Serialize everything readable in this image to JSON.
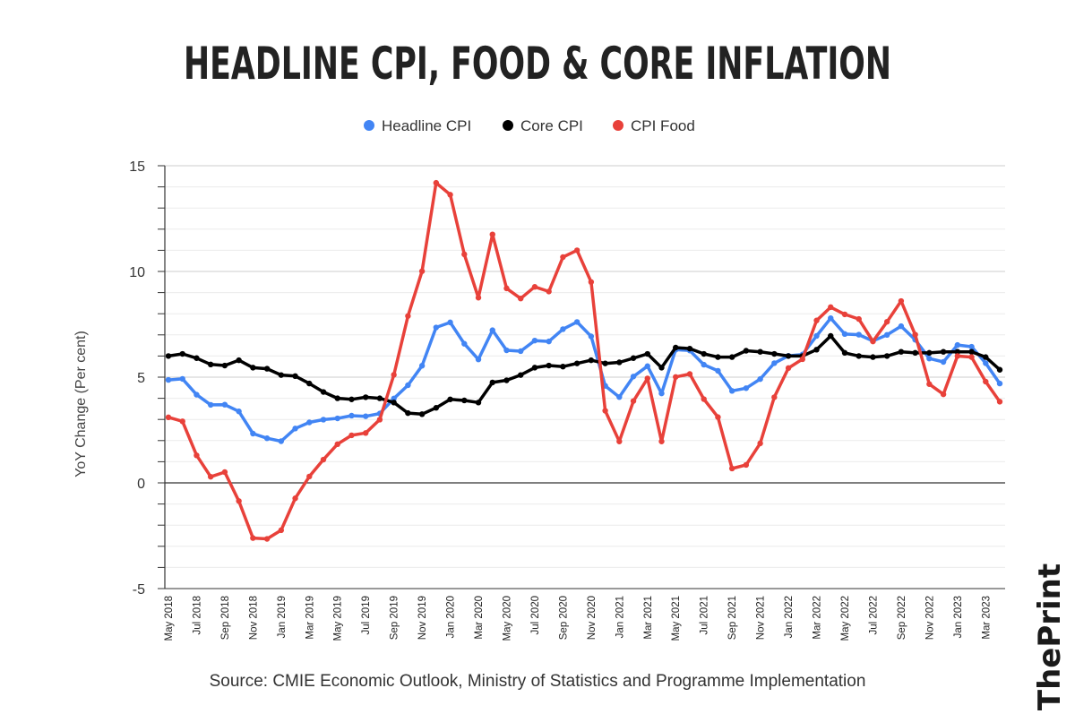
{
  "chart_data": {
    "type": "line",
    "title": "HEADLINE CPI, FOOD & CORE INFLATION",
    "ylabel": "YoY Change (Per cent)",
    "xlabel": "",
    "ylim": [
      -5,
      15
    ],
    "yticks": [
      -5,
      0,
      5,
      10,
      15
    ],
    "grid": true,
    "legend_position": "top-center",
    "x": [
      "May 2018",
      "Jun 2018",
      "Jul 2018",
      "Aug 2018",
      "Sep 2018",
      "Oct 2018",
      "Nov 2018",
      "Dec 2018",
      "Jan 2019",
      "Feb 2019",
      "Mar 2019",
      "Apr 2019",
      "May 2019",
      "Jun 2019",
      "Jul 2019",
      "Aug 2019",
      "Sep 2019",
      "Oct 2019",
      "Nov 2019",
      "Dec 2019",
      "Jan 2020",
      "Feb 2020",
      "Mar 2020",
      "Apr 2020",
      "May 2020",
      "Jun 2020",
      "Jul 2020",
      "Aug 2020",
      "Sep 2020",
      "Oct 2020",
      "Nov 2020",
      "Dec 2020",
      "Jan 2021",
      "Feb 2021",
      "Mar 2021",
      "Apr 2021",
      "May 2021",
      "Jun 2021",
      "Jul 2021",
      "Aug 2021",
      "Sep 2021",
      "Oct 2021",
      "Nov 2021",
      "Dec 2021",
      "Jan 2022",
      "Feb 2022",
      "Mar 2022",
      "Apr 2022",
      "May 2022",
      "Jun 2022",
      "Jul 2022",
      "Aug 2022",
      "Sep 2022",
      "Oct 2022",
      "Nov 2022",
      "Dec 2022",
      "Jan 2023",
      "Feb 2023",
      "Mar 2023",
      "Apr 2023"
    ],
    "xtick_labels": [
      "May 2018",
      "Jul 2018",
      "Sep 2018",
      "Nov 2018",
      "Jan 2019",
      "Mar 2019",
      "May 2019",
      "Jul 2019",
      "Sep 2019",
      "Nov 2019",
      "Jan 2020",
      "Mar 2020",
      "May 2020",
      "Jul 2020",
      "Sep 2020",
      "Nov 2020",
      "Jan 2021",
      "Mar 2021",
      "May 2021",
      "Jul 2021",
      "Sep 2021",
      "Nov 2021",
      "Jan 2022",
      "Mar 2022",
      "May 2022",
      "Jul 2022",
      "Sep 2022",
      "Nov 2022",
      "Jan 2023",
      "Mar 2023"
    ],
    "series": [
      {
        "name": "Headline CPI",
        "color": "#4285f4",
        "values": [
          4.87,
          4.92,
          4.17,
          3.69,
          3.7,
          3.38,
          2.33,
          2.11,
          1.97,
          2.57,
          2.86,
          2.99,
          3.05,
          3.18,
          3.15,
          3.28,
          3.99,
          4.62,
          5.54,
          7.35,
          7.59,
          6.58,
          5.84,
          7.22,
          6.27,
          6.23,
          6.73,
          6.69,
          7.27,
          7.61,
          6.93,
          4.59,
          4.06,
          5.03,
          5.52,
          4.23,
          6.3,
          6.26,
          5.59,
          5.3,
          4.35,
          4.48,
          4.91,
          5.66,
          6.01,
          6.07,
          6.95,
          7.79,
          7.04,
          7.01,
          6.71,
          7.0,
          7.41,
          6.77,
          5.88,
          5.72,
          6.52,
          6.44,
          5.66,
          4.7
        ]
      },
      {
        "name": "Core CPI",
        "color": "#000000",
        "values": [
          6.0,
          6.1,
          5.9,
          5.6,
          5.55,
          5.8,
          5.45,
          5.4,
          5.1,
          5.05,
          4.7,
          4.3,
          4.0,
          3.95,
          4.05,
          4.0,
          3.8,
          3.3,
          3.25,
          3.55,
          3.95,
          3.9,
          3.8,
          4.75,
          4.85,
          5.1,
          5.45,
          5.55,
          5.5,
          5.65,
          5.8,
          5.65,
          5.7,
          5.9,
          6.1,
          5.45,
          6.4,
          6.35,
          6.1,
          5.95,
          5.95,
          6.25,
          6.2,
          6.1,
          6.0,
          6.0,
          6.3,
          6.95,
          6.15,
          6.0,
          5.95,
          6.0,
          6.2,
          6.15,
          6.15,
          6.2,
          6.2,
          6.2,
          5.95,
          5.35
        ]
      },
      {
        "name": "CPI Food",
        "color": "#e8413a",
        "values": [
          3.1,
          2.91,
          1.3,
          0.29,
          0.51,
          -0.86,
          -2.61,
          -2.65,
          -2.24,
          -0.73,
          0.3,
          1.1,
          1.83,
          2.25,
          2.36,
          2.99,
          5.11,
          7.89,
          10.01,
          14.19,
          13.63,
          10.81,
          8.76,
          11.75,
          9.2,
          8.72,
          9.27,
          9.05,
          10.68,
          11.0,
          9.5,
          3.41,
          1.96,
          3.87,
          4.94,
          1.96,
          5.01,
          5.15,
          3.96,
          3.11,
          0.68,
          0.85,
          1.87,
          4.05,
          5.43,
          5.85,
          7.68,
          8.31,
          7.97,
          7.75,
          6.69,
          7.62,
          8.6,
          7.01,
          4.67,
          4.19,
          6.0,
          5.95,
          4.79,
          3.84
        ]
      }
    ]
  },
  "source_text": "Source: CMIE Economic Outlook, Ministry of Statistics and Programme Implementation",
  "brand": "ThePrint"
}
